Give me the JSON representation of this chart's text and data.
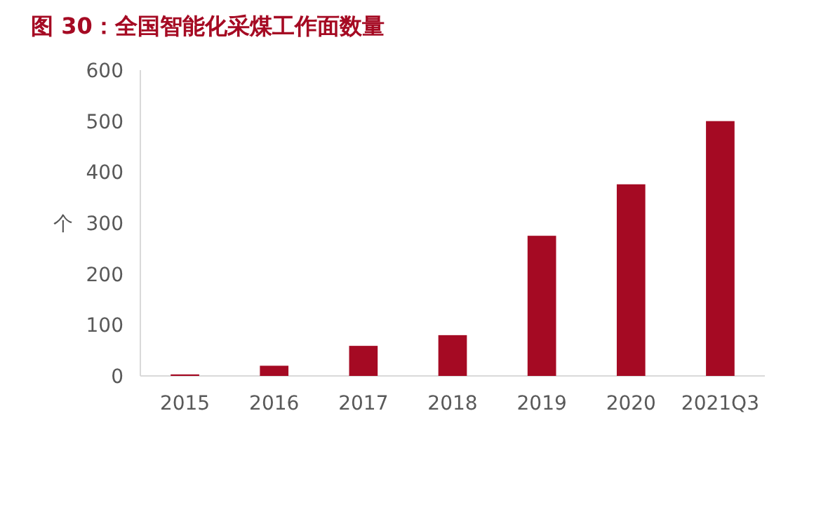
{
  "chart_data": {
    "type": "bar",
    "title": "图 30：全国智能化采煤工作面数量",
    "ylabel": "个",
    "categories": [
      "2015",
      "2016",
      "2017",
      "2018",
      "2019",
      "2020",
      "2021Q3"
    ],
    "values": [
      3,
      20,
      59,
      80,
      275,
      376,
      500
    ],
    "color": "#a50a23",
    "ylim": [
      0,
      600
    ],
    "yticks": [
      0,
      100,
      200,
      300,
      400,
      500,
      600
    ]
  }
}
